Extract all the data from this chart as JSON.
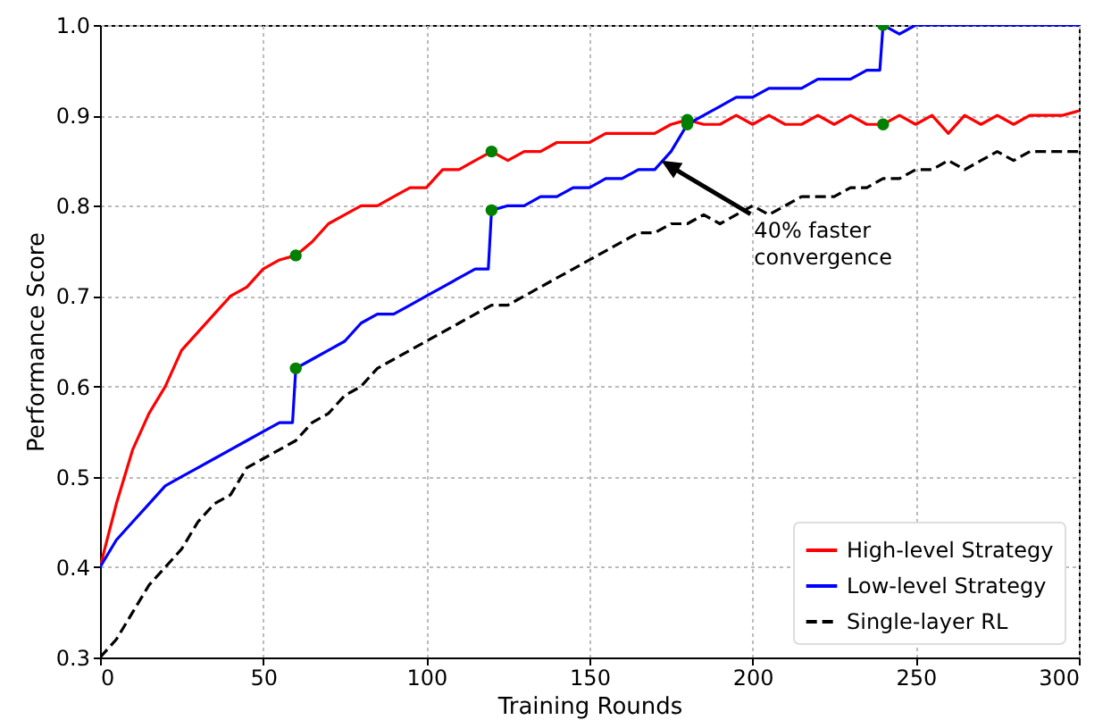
{
  "chart_data": {
    "type": "line",
    "xlabel": "Training Rounds",
    "ylabel": "Performance Score",
    "xlim": [
      0,
      300
    ],
    "ylim": [
      0.3,
      1.0
    ],
    "xticks": [
      0,
      50,
      100,
      150,
      200,
      250,
      300
    ],
    "yticks": [
      {
        "value": 0.3,
        "label": "0.3"
      },
      {
        "value": 0.4,
        "label": "0.4"
      },
      {
        "value": 0.5,
        "label": "0.5"
      },
      {
        "value": 0.6,
        "label": "0.6"
      },
      {
        "value": 0.7,
        "label": "0.7"
      },
      {
        "value": 0.8,
        "label": "0.8"
      },
      {
        "value": 0.9,
        "label": "0.9"
      },
      {
        "value": 1.0,
        "label": "1.0"
      }
    ],
    "grid": true,
    "legend": "bottom right",
    "marker": "none",
    "series": [
      {
        "name": "High-level Strategy",
        "color": "#ff0000",
        "x": [
          0,
          5,
          10,
          15,
          20,
          25,
          30,
          35,
          40,
          45,
          50,
          55,
          60,
          65,
          70,
          75,
          80,
          85,
          90,
          95,
          100,
          105,
          110,
          115,
          120,
          125,
          130,
          135,
          140,
          145,
          150,
          155,
          160,
          165,
          170,
          175,
          180,
          185,
          190,
          195,
          200,
          205,
          210,
          215,
          220,
          225,
          230,
          235,
          240,
          245,
          250,
          255,
          260,
          265,
          270,
          275,
          280,
          285,
          290,
          295,
          300
        ],
        "values": [
          0.4,
          0.47,
          0.53,
          0.57,
          0.6,
          0.64,
          0.66,
          0.68,
          0.7,
          0.71,
          0.73,
          0.74,
          0.745,
          0.76,
          0.78,
          0.79,
          0.8,
          0.8,
          0.81,
          0.82,
          0.82,
          0.84,
          0.84,
          0.85,
          0.86,
          0.85,
          0.86,
          0.86,
          0.87,
          0.87,
          0.87,
          0.88,
          0.88,
          0.88,
          0.88,
          0.89,
          0.895,
          0.89,
          0.89,
          0.9,
          0.89,
          0.9,
          0.89,
          0.89,
          0.9,
          0.89,
          0.9,
          0.89,
          0.89,
          0.9,
          0.89,
          0.9,
          0.88,
          0.9,
          0.89,
          0.9,
          0.89,
          0.9,
          0.9,
          0.9,
          0.905
        ]
      },
      {
        "name": "Low-level Strategy",
        "color": "#0000ff",
        "x": [
          0,
          5,
          10,
          15,
          20,
          25,
          30,
          35,
          40,
          45,
          50,
          55,
          59,
          60,
          65,
          70,
          75,
          80,
          85,
          90,
          95,
          100,
          105,
          110,
          115,
          119,
          120,
          125,
          130,
          135,
          140,
          145,
          150,
          155,
          160,
          165,
          170,
          175,
          180,
          185,
          190,
          195,
          200,
          205,
          210,
          215,
          220,
          225,
          230,
          235,
          239,
          240,
          245,
          250,
          260,
          270,
          280,
          290,
          300
        ],
        "values": [
          0.4,
          0.43,
          0.45,
          0.47,
          0.49,
          0.5,
          0.51,
          0.52,
          0.53,
          0.54,
          0.55,
          0.56,
          0.56,
          0.62,
          0.63,
          0.64,
          0.65,
          0.67,
          0.68,
          0.68,
          0.69,
          0.7,
          0.71,
          0.72,
          0.73,
          0.73,
          0.795,
          0.8,
          0.8,
          0.81,
          0.81,
          0.82,
          0.82,
          0.83,
          0.83,
          0.84,
          0.84,
          0.86,
          0.89,
          0.9,
          0.91,
          0.92,
          0.92,
          0.93,
          0.93,
          0.93,
          0.94,
          0.94,
          0.94,
          0.95,
          0.95,
          1.0,
          0.99,
          1.0,
          1.0,
          1.0,
          1.0,
          1.0,
          1.0
        ]
      },
      {
        "name": "Single-layer RL",
        "color": "#000000",
        "line_style": "dashed",
        "x": [
          0,
          5,
          10,
          15,
          20,
          25,
          30,
          35,
          40,
          45,
          50,
          55,
          60,
          65,
          70,
          75,
          80,
          85,
          90,
          95,
          100,
          105,
          110,
          115,
          120,
          125,
          130,
          135,
          140,
          145,
          150,
          155,
          160,
          165,
          170,
          175,
          180,
          185,
          190,
          195,
          200,
          205,
          210,
          215,
          220,
          225,
          230,
          235,
          240,
          245,
          250,
          255,
          260,
          265,
          270,
          275,
          280,
          285,
          290,
          295,
          300
        ],
        "values": [
          0.3,
          0.32,
          0.35,
          0.38,
          0.4,
          0.42,
          0.45,
          0.47,
          0.48,
          0.51,
          0.52,
          0.53,
          0.54,
          0.56,
          0.57,
          0.59,
          0.6,
          0.62,
          0.63,
          0.64,
          0.65,
          0.66,
          0.67,
          0.68,
          0.69,
          0.69,
          0.7,
          0.71,
          0.72,
          0.73,
          0.74,
          0.75,
          0.76,
          0.77,
          0.77,
          0.78,
          0.78,
          0.79,
          0.78,
          0.79,
          0.8,
          0.79,
          0.8,
          0.81,
          0.81,
          0.81,
          0.82,
          0.82,
          0.83,
          0.83,
          0.84,
          0.84,
          0.85,
          0.84,
          0.85,
          0.86,
          0.85,
          0.86,
          0.86,
          0.86,
          0.86
        ]
      },
      {
        "type": "scatter",
        "marker": "circle",
        "color": "#008000",
        "x": [
          60,
          120,
          180,
          240,
          60,
          120,
          180,
          240
        ],
        "values": [
          0.745,
          0.86,
          0.895,
          0.89,
          0.62,
          0.795,
          0.89,
          1.0
        ]
      }
    ],
    "annotations": [
      {
        "text": "40% faster\nconvergence",
        "x": 172,
        "y": 0.85
      }
    ]
  }
}
